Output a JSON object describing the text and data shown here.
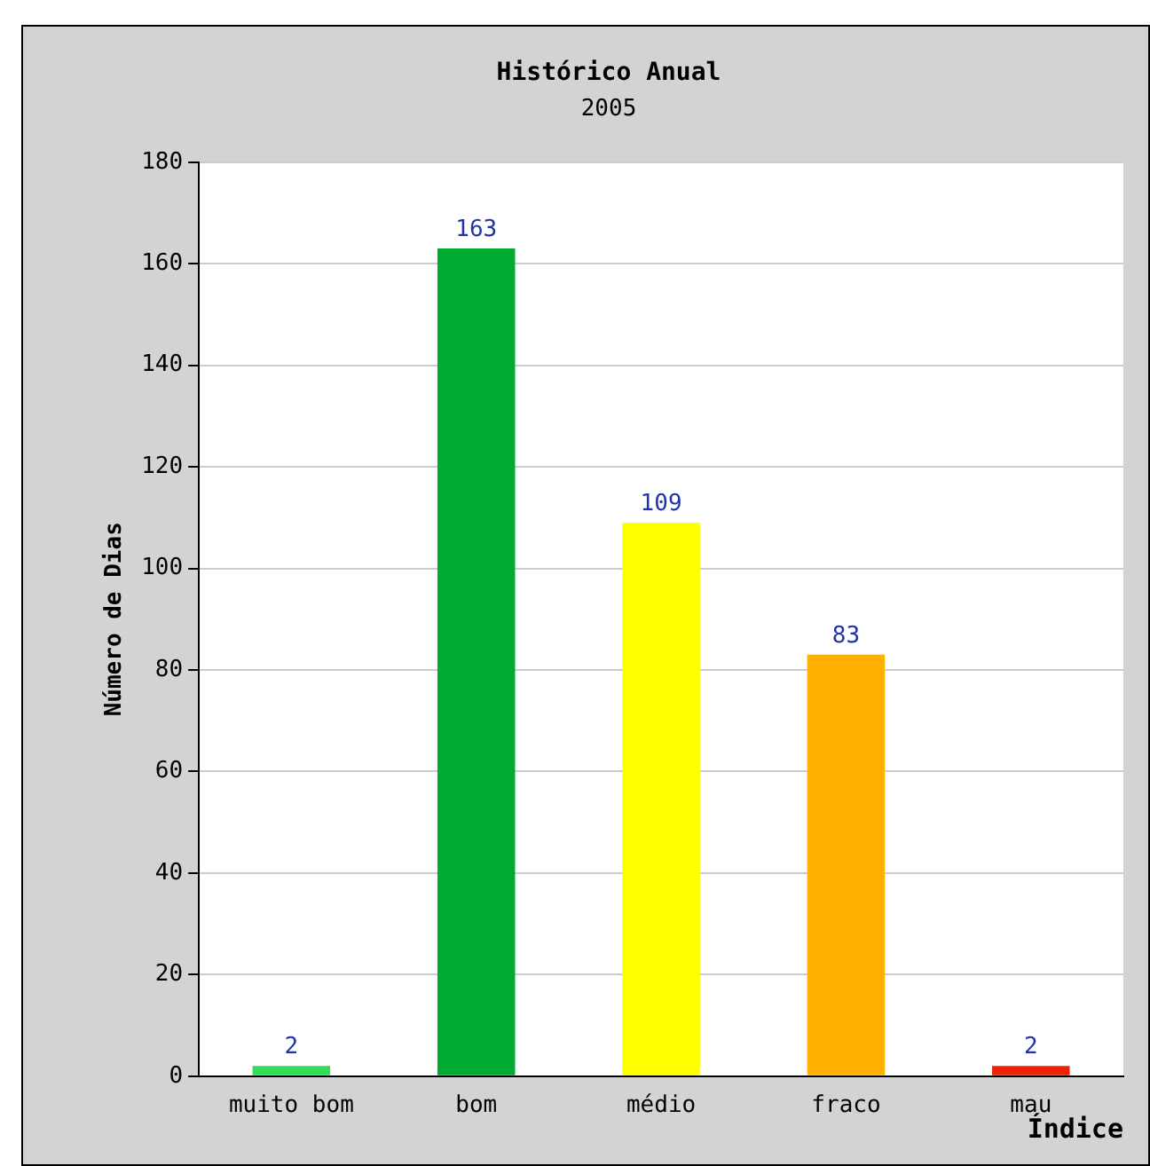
{
  "chart_data": {
    "type": "bar",
    "title": "Histórico Anual",
    "subtitle": "2005",
    "xlabel": "Índice",
    "ylabel": "Número de Dias",
    "categories": [
      "muito bom",
      "bom",
      "médio",
      "fraco",
      "mau"
    ],
    "values": [
      2,
      163,
      109,
      83,
      2
    ],
    "colors": [
      "#33dd55",
      "#00aa33",
      "#ffff00",
      "#ffb000",
      "#ee2200"
    ],
    "ylim": [
      0,
      180
    ],
    "yticks": [
      0,
      20,
      40,
      60,
      80,
      100,
      120,
      140,
      160,
      180
    ],
    "grid": "y",
    "legend": false,
    "data_labels": true
  }
}
